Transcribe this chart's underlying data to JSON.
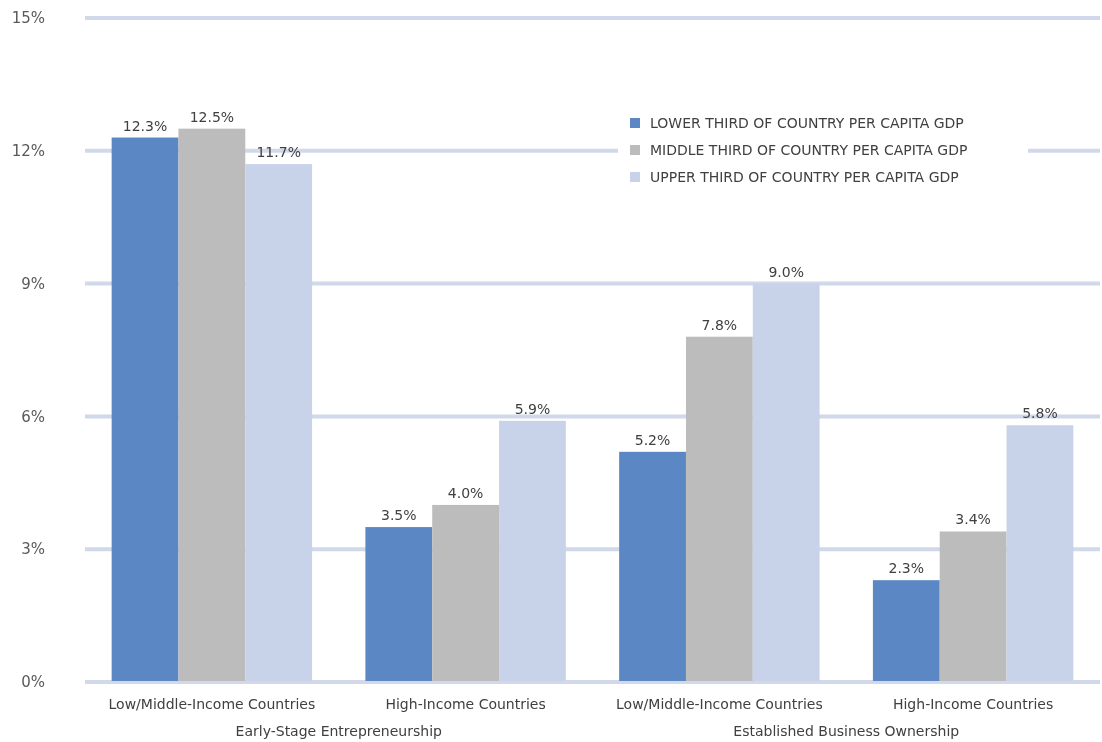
{
  "chart_data": {
    "type": "bar",
    "categories": [
      "Low/Middle-Income Countries",
      "High-Income Countries",
      "Low/Middle-Income Countries",
      "High-Income Countries"
    ],
    "series": [
      {
        "name": "LOWER THIRD OF COUNTRY PER CAPITA GDP",
        "color": "#5b87c5",
        "values": [
          12.3,
          3.5,
          5.2,
          2.3
        ],
        "value_labels": [
          "12.3%",
          "3.5%",
          "5.2%",
          "2.3%"
        ]
      },
      {
        "name": "MIDDLE THIRD OF COUNTRY PER CAPITA GDP",
        "color": "#bcbcbd",
        "values": [
          12.5,
          4.0,
          7.8,
          3.4
        ],
        "value_labels": [
          "12.5%",
          "4.0%",
          "7.8%",
          "3.4%"
        ]
      },
      {
        "name": "UPPER THIRD OF COUNTRY PER CAPITA GDP",
        "color": "#c8d3ea",
        "values": [
          11.7,
          5.9,
          9.0,
          5.8
        ],
        "value_labels": [
          "11.7%",
          "5.9%",
          "9.0%",
          "5.8%"
        ]
      }
    ],
    "annotations": [
      "Early-Stage Entrepreneurship",
      "Established Business Ownership"
    ],
    "ylim": [
      0,
      15
    ],
    "yticks": [
      {
        "value": 0,
        "label": "0%"
      },
      {
        "value": 3,
        "label": "3%"
      },
      {
        "value": 6,
        "label": "6%"
      },
      {
        "value": 9,
        "label": "9%"
      },
      {
        "value": 12,
        "label": "12%"
      },
      {
        "value": 15,
        "label": "15%"
      }
    ],
    "grid": "y",
    "legend": "top right"
  }
}
